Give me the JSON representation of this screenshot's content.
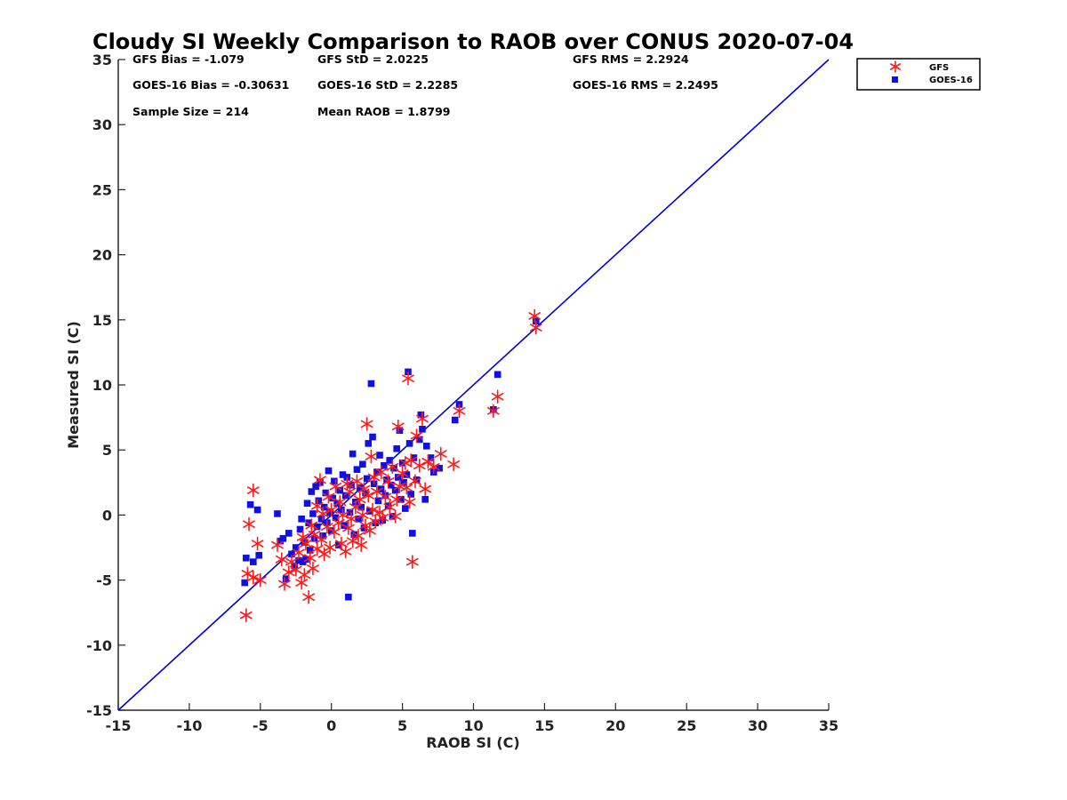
{
  "chart_data": {
    "type": "scatter",
    "title": "Cloudy SI Weekly Comparison to RAOB over CONUS 2020-07-04",
    "xlabel": "RAOB SI (C)",
    "ylabel": "Measured SI (C)",
    "xlim": [
      -15,
      35
    ],
    "ylim": [
      -15,
      35
    ],
    "x_ticks": [
      "-15",
      "-10",
      "-5",
      "0",
      "5",
      "10",
      "15",
      "20",
      "25",
      "30",
      "35"
    ],
    "y_ticks": [
      "35",
      "30",
      "25",
      "20",
      "15",
      "10",
      "5",
      "0",
      "-5",
      "-10",
      "-15"
    ],
    "grid": false,
    "legend_position": "outside-top-right",
    "stats": {
      "gfs_bias": "GFS Bias = -1.079",
      "gfs_std": "GFS StD = 2.0225",
      "gfs_rms": "GFS RMS = 2.2924",
      "goes_bias": "GOES-16 Bias = -0.30631",
      "goes_std": "GOES-16 StD = 2.2285",
      "goes_rms": "GOES-16 RMS = 2.2495",
      "sample_size": "Sample Size = 214",
      "mean_raob": "Mean RAOB = 1.8799"
    },
    "reference_line": {
      "x": [
        -15,
        35
      ],
      "y": [
        -15,
        35
      ],
      "color": "#0000dd"
    },
    "series": [
      {
        "name": "GFS",
        "marker": "asterisk",
        "color": "#ff1a1a",
        "points": [
          [
            -6.0,
            -7.7
          ],
          [
            -5.9,
            -4.5
          ],
          [
            -5.8,
            -0.7
          ],
          [
            -5.5,
            1.9
          ],
          [
            -5.5,
            -4.8
          ],
          [
            -5.2,
            -2.2
          ],
          [
            -5.0,
            -5.0
          ],
          [
            -3.8,
            -2.3
          ],
          [
            -3.5,
            -3.4
          ],
          [
            -3.3,
            -5.3
          ],
          [
            -3.0,
            -4.4
          ],
          [
            -2.8,
            -3.6
          ],
          [
            -2.5,
            -4.2
          ],
          [
            -2.3,
            -2.9
          ],
          [
            -2.1,
            -5.2
          ],
          [
            -2.0,
            -1.7
          ],
          [
            -1.9,
            -4.6
          ],
          [
            -1.8,
            -2.2
          ],
          [
            -1.6,
            -6.3
          ],
          [
            -1.5,
            -3.3
          ],
          [
            -1.4,
            -0.8
          ],
          [
            -1.3,
            -4.1
          ],
          [
            -1.2,
            -1.5
          ],
          [
            -1.0,
            -2.6
          ],
          [
            -1.0,
            0.7
          ],
          [
            -0.8,
            2.7
          ],
          [
            -0.7,
            -1.9
          ],
          [
            -0.6,
            0.1
          ],
          [
            -0.5,
            -3.0
          ],
          [
            -0.3,
            -0.9
          ],
          [
            -0.2,
            1.4
          ],
          [
            -0.1,
            -2.5
          ],
          [
            0.0,
            0.4
          ],
          [
            0.2,
            -1.3
          ],
          [
            0.3,
            2.2
          ],
          [
            0.5,
            -0.6
          ],
          [
            0.6,
            1.0
          ],
          [
            0.7,
            -2.2
          ],
          [
            0.8,
            0.0
          ],
          [
            1.0,
            -2.8
          ],
          [
            1.1,
            2.4
          ],
          [
            1.2,
            -1.0
          ],
          [
            1.3,
            1.8
          ],
          [
            1.4,
            -0.3
          ],
          [
            1.5,
            -2.0
          ],
          [
            1.7,
            0.6
          ],
          [
            1.8,
            2.6
          ],
          [
            1.9,
            -1.6
          ],
          [
            2.0,
            1.2
          ],
          [
            2.1,
            -2.3
          ],
          [
            2.2,
            0.0
          ],
          [
            2.3,
            2.0
          ],
          [
            2.4,
            -0.8
          ],
          [
            2.5,
            7.0
          ],
          [
            2.6,
            1.5
          ],
          [
            2.7,
            -1.2
          ],
          [
            2.8,
            4.5
          ],
          [
            2.9,
            0.4
          ],
          [
            3.0,
            2.9
          ],
          [
            3.1,
            -0.5
          ],
          [
            3.2,
            1.8
          ],
          [
            3.4,
            0.2
          ],
          [
            3.5,
            3.3
          ],
          [
            3.6,
            -0.2
          ],
          [
            3.8,
            1.4
          ],
          [
            4.0,
            2.6
          ],
          [
            4.1,
            0.6
          ],
          [
            4.3,
            3.7
          ],
          [
            4.5,
            -0.1
          ],
          [
            4.6,
            1.2
          ],
          [
            4.7,
            6.8
          ],
          [
            4.8,
            2.2
          ],
          [
            5.0,
            3.2
          ],
          [
            5.2,
            4.0
          ],
          [
            5.3,
            2.1
          ],
          [
            5.4,
            10.5
          ],
          [
            5.5,
            1.0
          ],
          [
            5.6,
            4.2
          ],
          [
            5.7,
            -3.6
          ],
          [
            5.9,
            2.6
          ],
          [
            6.0,
            6.1
          ],
          [
            6.2,
            3.8
          ],
          [
            6.4,
            7.4
          ],
          [
            6.6,
            2.0
          ],
          [
            6.8,
            4.1
          ],
          [
            7.2,
            3.7
          ],
          [
            7.7,
            4.7
          ],
          [
            8.6,
            3.9
          ],
          [
            9.0,
            8.0
          ],
          [
            11.4,
            8.0
          ],
          [
            11.7,
            9.1
          ],
          [
            14.3,
            15.3
          ],
          [
            14.4,
            14.4
          ]
        ]
      },
      {
        "name": "GOES-16",
        "marker": "square",
        "color": "#1010e6",
        "points": [
          [
            -6.1,
            -5.2
          ],
          [
            -6.0,
            -3.3
          ],
          [
            -5.7,
            0.8
          ],
          [
            -5.5,
            -3.6
          ],
          [
            -5.2,
            0.4
          ],
          [
            -5.1,
            -3.1
          ],
          [
            -3.8,
            0.1
          ],
          [
            -3.6,
            -2.0
          ],
          [
            -3.4,
            -1.8
          ],
          [
            -3.2,
            -4.9
          ],
          [
            -3.0,
            -1.4
          ],
          [
            -2.8,
            -3.0
          ],
          [
            -2.6,
            -3.9
          ],
          [
            -2.5,
            -2.5
          ],
          [
            -2.3,
            -3.5
          ],
          [
            -2.2,
            -1.1
          ],
          [
            -2.1,
            -0.3
          ],
          [
            -2.0,
            -3.6
          ],
          [
            -1.9,
            -2.1
          ],
          [
            -1.8,
            -3.4
          ],
          [
            -1.7,
            0.9
          ],
          [
            -1.6,
            -0.6
          ],
          [
            -1.5,
            -2.7
          ],
          [
            -1.4,
            1.8
          ],
          [
            -1.3,
            0.1
          ],
          [
            -1.2,
            -1.8
          ],
          [
            -1.1,
            2.2
          ],
          [
            -1.0,
            -0.9
          ],
          [
            -0.9,
            1.1
          ],
          [
            -0.8,
            2.5
          ],
          [
            -0.7,
            -0.3
          ],
          [
            -0.6,
            -1.6
          ],
          [
            -0.5,
            0.6
          ],
          [
            -0.4,
            1.7
          ],
          [
            -0.3,
            -0.6
          ],
          [
            -0.2,
            3.4
          ],
          [
            -0.1,
            0.2
          ],
          [
            0.0,
            -1.2
          ],
          [
            0.1,
            1.3
          ],
          [
            0.2,
            2.6
          ],
          [
            0.3,
            -0.2
          ],
          [
            0.4,
            0.9
          ],
          [
            0.5,
            -2.3
          ],
          [
            0.6,
            1.9
          ],
          [
            0.7,
            0.4
          ],
          [
            0.8,
            3.1
          ],
          [
            0.9,
            -0.8
          ],
          [
            1.0,
            1.5
          ],
          [
            1.1,
            2.9
          ],
          [
            1.2,
            -6.3
          ],
          [
            1.3,
            0.2
          ],
          [
            1.4,
            2.3
          ],
          [
            1.5,
            4.7
          ],
          [
            1.6,
            -1.5
          ],
          [
            1.7,
            1.0
          ],
          [
            1.8,
            3.5
          ],
          [
            1.9,
            -0.3
          ],
          [
            2.0,
            2.1
          ],
          [
            2.1,
            0.6
          ],
          [
            2.2,
            3.9
          ],
          [
            2.3,
            -1.0
          ],
          [
            2.4,
            1.7
          ],
          [
            2.5,
            2.8
          ],
          [
            2.6,
            5.5
          ],
          [
            2.7,
            0.3
          ],
          [
            2.8,
            10.1
          ],
          [
            2.9,
            6.0
          ],
          [
            3.0,
            2.4
          ],
          [
            3.1,
            -0.6
          ],
          [
            3.2,
            3.3
          ],
          [
            3.3,
            1.1
          ],
          [
            3.4,
            4.6
          ],
          [
            3.5,
            2.0
          ],
          [
            3.6,
            -0.4
          ],
          [
            3.7,
            3.8
          ],
          [
            3.8,
            1.5
          ],
          [
            3.9,
            2.7
          ],
          [
            4.0,
            0.7
          ],
          [
            4.1,
            4.2
          ],
          [
            4.2,
            2.3
          ],
          [
            4.3,
            -0.1
          ],
          [
            4.4,
            3.6
          ],
          [
            4.5,
            1.9
          ],
          [
            4.6,
            5.1
          ],
          [
            4.7,
            2.9
          ],
          [
            4.8,
            6.5
          ],
          [
            4.9,
            1.2
          ],
          [
            5.0,
            4.0
          ],
          [
            5.1,
            2.5
          ],
          [
            5.2,
            0.5
          ],
          [
            5.3,
            3.1
          ],
          [
            5.4,
            11.0
          ],
          [
            5.5,
            5.5
          ],
          [
            5.6,
            1.6
          ],
          [
            5.7,
            -1.4
          ],
          [
            5.8,
            4.4
          ],
          [
            6.0,
            2.7
          ],
          [
            6.2,
            5.8
          ],
          [
            6.3,
            7.7
          ],
          [
            6.4,
            6.6
          ],
          [
            6.6,
            1.2
          ],
          [
            6.7,
            5.3
          ],
          [
            7.0,
            4.4
          ],
          [
            7.2,
            3.3
          ],
          [
            7.6,
            3.6
          ],
          [
            8.7,
            7.3
          ],
          [
            9.0,
            8.5
          ],
          [
            11.4,
            8.1
          ],
          [
            11.7,
            10.8
          ],
          [
            14.4,
            14.9
          ]
        ]
      }
    ]
  }
}
